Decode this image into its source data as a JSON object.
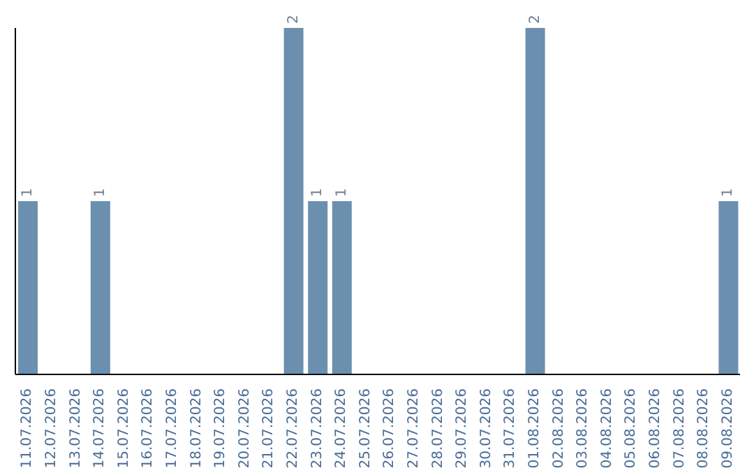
{
  "chart_data": {
    "type": "bar",
    "categories": [
      "11.07.2026",
      "12.07.2026",
      "13.07.2026",
      "14.07.2026",
      "15.07.2026",
      "16.07.2026",
      "17.07.2026",
      "18.07.2026",
      "19.07.2026",
      "20.07.2026",
      "21.07.2026",
      "22.07.2026",
      "23.07.2026",
      "24.07.2026",
      "25.07.2026",
      "26.07.2026",
      "27.07.2026",
      "28.07.2026",
      "29.07.2026",
      "30.07.2026",
      "31.07.2026",
      "01.08.2026",
      "02.08.2026",
      "03.08.2026",
      "04.08.2026",
      "05.08.2026",
      "06.08.2026",
      "07.08.2026",
      "08.08.2026",
      "09.08.2026"
    ],
    "values": [
      1,
      0,
      0,
      1,
      0,
      0,
      0,
      0,
      0,
      0,
      0,
      2,
      1,
      1,
      0,
      0,
      0,
      0,
      0,
      0,
      0,
      2,
      0,
      0,
      0,
      0,
      0,
      0,
      0,
      1
    ],
    "value_labels": [
      "1",
      null,
      null,
      "1",
      null,
      null,
      null,
      null,
      null,
      null,
      null,
      "2",
      "1",
      "1",
      null,
      null,
      null,
      null,
      null,
      null,
      null,
      "2",
      null,
      null,
      null,
      null,
      null,
      null,
      null,
      "1"
    ],
    "color": "#6b8fae",
    "grid": false,
    "legend": false
  }
}
